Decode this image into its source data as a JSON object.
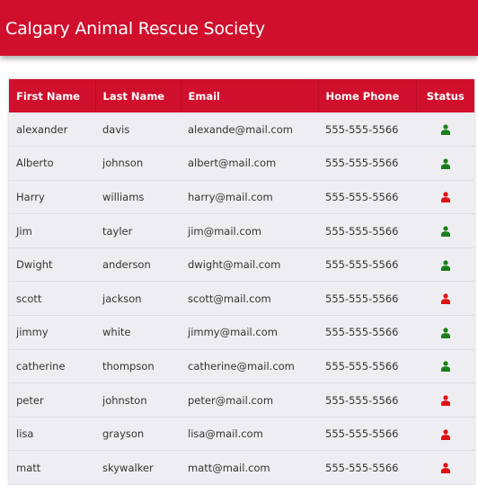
{
  "header": {
    "title": "Calgary Animal Rescue Society"
  },
  "table": {
    "columns": [
      "First Name",
      "Last Name",
      "Email",
      "Home Phone",
      "Status"
    ],
    "rows": [
      {
        "first": "alexander",
        "last": "davis",
        "email": "alexande@mail.com",
        "phone": "555-555-5566",
        "status": "active"
      },
      {
        "first": "Alberto",
        "last": "johnson",
        "email": "albert@mail.com",
        "phone": "555-555-5566",
        "status": "active"
      },
      {
        "first": "Harry",
        "last": "williams",
        "email": "harry@mail.com",
        "phone": "555-555-5566",
        "status": "inactive"
      },
      {
        "first": "Jim",
        "last": "tayler",
        "email": "jim@mail.com",
        "phone": "555-555-5566",
        "status": "active"
      },
      {
        "first": "Dwight",
        "last": "anderson",
        "email": "dwight@mail.com",
        "phone": "555-555-5566",
        "status": "active"
      },
      {
        "first": "scott",
        "last": "jackson",
        "email": "scott@mail.com",
        "phone": "555-555-5566",
        "status": "inactive"
      },
      {
        "first": "jimmy",
        "last": "white",
        "email": "jimmy@mail.com",
        "phone": "555-555-5566",
        "status": "active"
      },
      {
        "first": "catherine",
        "last": "thompson",
        "email": "catherine@mail.com",
        "phone": "555-555-5566",
        "status": "active"
      },
      {
        "first": "peter",
        "last": "johnston",
        "email": "peter@mail.com",
        "phone": "555-555-5566",
        "status": "inactive"
      },
      {
        "first": "lisa",
        "last": "grayson",
        "email": "lisa@mail.com",
        "phone": "555-555-5566",
        "status": "inactive"
      },
      {
        "first": "matt",
        "last": "skywalker",
        "email": "matt@mail.com",
        "phone": "555-555-5566",
        "status": "inactive"
      }
    ]
  },
  "colors": {
    "brand": "#d00f2c",
    "status_active": "#1a7f1a",
    "status_inactive": "#e01010"
  },
  "icons": {
    "status": "person-icon"
  }
}
